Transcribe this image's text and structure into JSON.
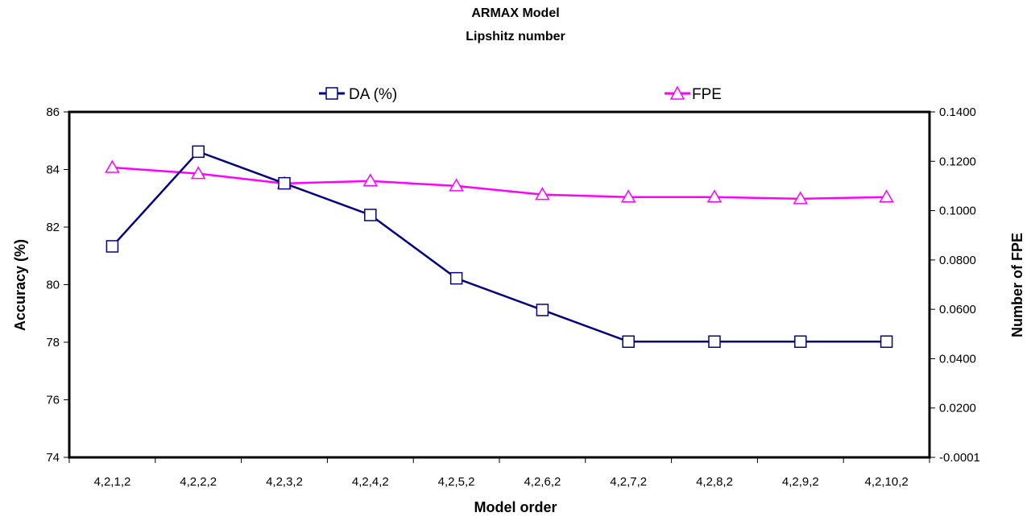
{
  "chart_data": {
    "type": "line",
    "title": [
      "ARMAX Model",
      "Lipshitz number"
    ],
    "xlabel": "Model order",
    "ylabel_left": "Accuracy (%)",
    "ylabel_right": "Number of FPE",
    "categories": [
      "4,2,1,2",
      "4,2,2,2",
      "4,2,3,2",
      "4,2,4,2",
      "4,2,5,2",
      "4,2,6,2",
      "4,2,7,2",
      "4,2,8,2",
      "4,2,9,2",
      "4,2,10,2"
    ],
    "y_left": {
      "range": [
        74,
        86
      ],
      "ticks": [
        "74",
        "76",
        "78",
        "80",
        "82",
        "84",
        "86"
      ]
    },
    "y_right": {
      "range": [
        -0.0001,
        0.14
      ],
      "ticks": [
        "-0.0001",
        "0.0200",
        "0.0400",
        "0.0600",
        "0.0800",
        "0.1000",
        "0.1200",
        "0.1400"
      ]
    },
    "legend_position": "top",
    "grid": false,
    "series": [
      {
        "name": "DA (%)",
        "axis": "left",
        "marker": "square",
        "color": "#000080",
        "values": [
          81.33,
          84.62,
          83.52,
          82.42,
          80.22,
          79.12,
          78.02,
          78.02,
          78.02,
          78.02
        ]
      },
      {
        "name": "FPE",
        "axis": "right",
        "marker": "triangle",
        "color": "#ff00ff",
        "values": [
          0.1175,
          0.115,
          0.111,
          0.112,
          0.11,
          0.1065,
          0.1055,
          0.1055,
          0.1048,
          0.1055
        ]
      }
    ]
  }
}
